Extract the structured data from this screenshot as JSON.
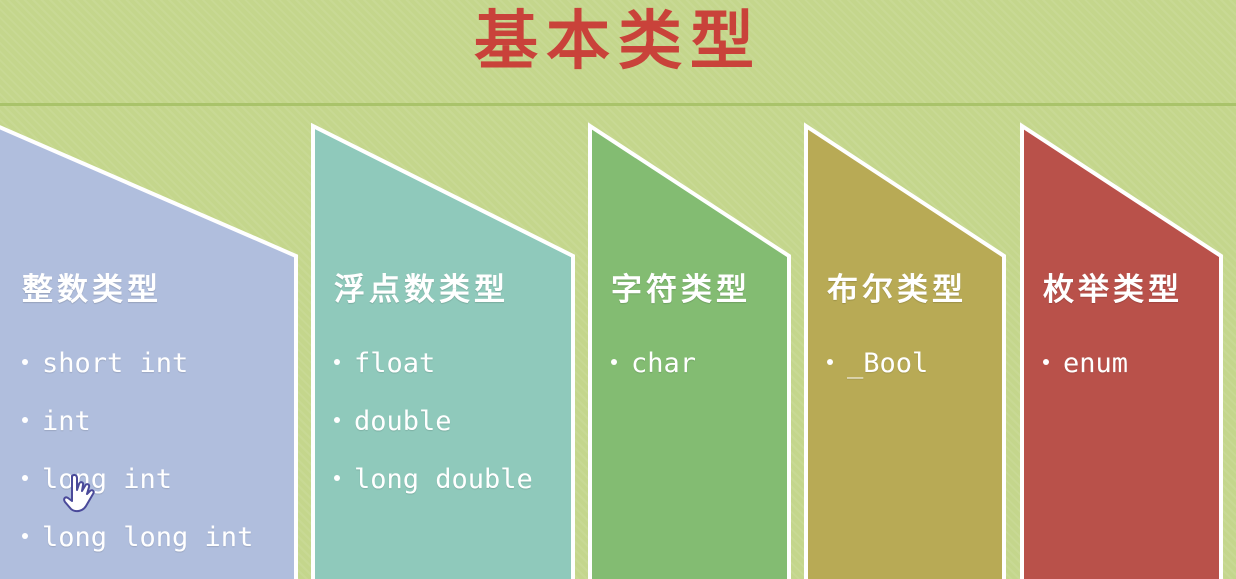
{
  "title": "基本类型",
  "colors": {
    "background": "#c4d68c",
    "title": "#c9423a",
    "panel_integer": "#b0bedd",
    "panel_float": "#8fc9bb",
    "panel_char": "#83bc72",
    "panel_bool": "#b8aa55",
    "panel_enum": "#b9514a"
  },
  "columns": [
    {
      "heading": "整数类型",
      "items": [
        "short int",
        "int",
        "long int",
        "long long int"
      ]
    },
    {
      "heading": "浮点数类型",
      "items": [
        "float",
        "double",
        "long double"
      ]
    },
    {
      "heading": "字符类型",
      "items": [
        "char"
      ]
    },
    {
      "heading": "布尔类型",
      "items": [
        "_Bool"
      ]
    },
    {
      "heading": "枚举类型",
      "items": [
        "enum"
      ]
    }
  ],
  "cursor_icon": "hand-pointer-icon"
}
